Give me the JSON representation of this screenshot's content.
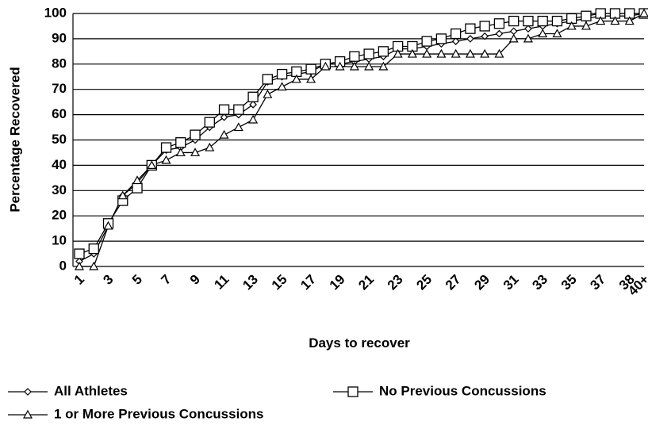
{
  "chart_data": {
    "type": "line",
    "ylabel": "Percentage Recovered",
    "xlabel": "Days to recover",
    "categories": [
      "1",
      null,
      "3",
      null,
      "5",
      null,
      "7",
      null,
      "9",
      null,
      "11",
      null,
      "13",
      null,
      "15",
      null,
      "17",
      null,
      "19",
      null,
      "21",
      null,
      "23",
      null,
      "25",
      null,
      "27",
      null,
      "29",
      null,
      "31",
      null,
      "33",
      null,
      "35",
      null,
      "37",
      null,
      "38",
      "40+"
    ],
    "ylim": [
      0,
      100
    ],
    "yticks": [
      0,
      10,
      20,
      30,
      40,
      50,
      60,
      70,
      80,
      90,
      100
    ],
    "grid": true,
    "series": [
      {
        "name": "All Athletes",
        "color": "#000000",
        "marker": "diamond",
        "values": [
          2,
          5,
          16,
          28,
          33,
          40,
          46,
          47,
          50,
          55,
          59,
          60,
          64,
          73,
          75,
          76,
          77,
          80,
          80,
          81,
          82,
          83,
          86,
          86,
          87,
          88,
          89,
          90,
          91,
          92,
          93,
          94,
          95,
          96,
          97,
          98,
          99,
          99,
          99,
          100
        ]
      },
      {
        "name": "No Previous Concussions",
        "color": "#000000",
        "marker": "square",
        "values": [
          5,
          7,
          17,
          26,
          31,
          40,
          47,
          49,
          52,
          57,
          62,
          62,
          67,
          74,
          76,
          77,
          78,
          80,
          81,
          83,
          84,
          85,
          87,
          87,
          89,
          90,
          92,
          94,
          95,
          96,
          97,
          97,
          97,
          97,
          98,
          99,
          100,
          100,
          100,
          100
        ]
      },
      {
        "name": "1 or More Previous Concussions",
        "color": "#000000",
        "marker": "triangle",
        "values": [
          0,
          0,
          16,
          28,
          34,
          40,
          42,
          45,
          45,
          47,
          52,
          55,
          58,
          68,
          71,
          74,
          74,
          79,
          79,
          79,
          79,
          79,
          84,
          84,
          84,
          84,
          84,
          84,
          84,
          84,
          90,
          90,
          92,
          92,
          95,
          95,
          97,
          97,
          97,
          100
        ]
      }
    ]
  }
}
